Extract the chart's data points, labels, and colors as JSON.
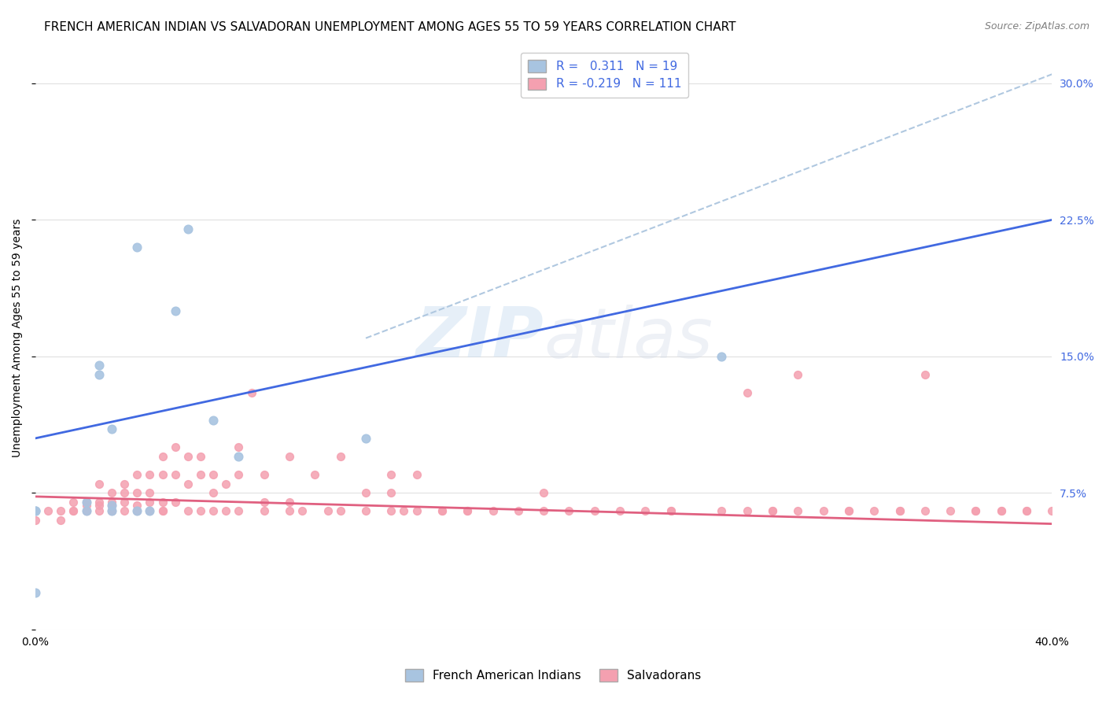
{
  "title": "FRENCH AMERICAN INDIAN VS SALVADORAN UNEMPLOYMENT AMONG AGES 55 TO 59 YEARS CORRELATION CHART",
  "source": "Source: ZipAtlas.com",
  "ylabel": "Unemployment Among Ages 55 to 59 years",
  "xlim": [
    0.0,
    0.4
  ],
  "ylim": [
    0.0,
    0.32
  ],
  "xticks": [
    0.0,
    0.05,
    0.1,
    0.15,
    0.2,
    0.25,
    0.3,
    0.35,
    0.4
  ],
  "yticks": [
    0.0,
    0.075,
    0.15,
    0.225,
    0.3
  ],
  "ytick_labels": [
    "",
    "7.5%",
    "15.0%",
    "22.5%",
    "30.0%"
  ],
  "xtick_labels": [
    "0.0%",
    "",
    "",
    "",
    "",
    "",
    "",
    "",
    "40.0%"
  ],
  "blue_R": 0.311,
  "blue_N": 19,
  "pink_R": -0.219,
  "pink_N": 111,
  "blue_color": "#a8c4e0",
  "pink_color": "#f4a0b0",
  "blue_line_color": "#4169e1",
  "pink_line_color": "#e06080",
  "dashed_line_color": "#b0c8e0",
  "watermark_zip": "ZIP",
  "watermark_atlas": "atlas",
  "blue_scatter_x": [
    0.0,
    0.02,
    0.02,
    0.025,
    0.025,
    0.03,
    0.03,
    0.03,
    0.04,
    0.04,
    0.045,
    0.055,
    0.06,
    0.07,
    0.08,
    0.27,
    0.13,
    0.0,
    0.0
  ],
  "blue_scatter_y": [
    0.065,
    0.065,
    0.07,
    0.14,
    0.145,
    0.065,
    0.068,
    0.11,
    0.065,
    0.21,
    0.065,
    0.175,
    0.22,
    0.115,
    0.095,
    0.15,
    0.105,
    0.02,
    0.065
  ],
  "pink_scatter_x": [
    0.0,
    0.005,
    0.01,
    0.01,
    0.015,
    0.015,
    0.015,
    0.02,
    0.02,
    0.02,
    0.02,
    0.025,
    0.025,
    0.025,
    0.025,
    0.03,
    0.03,
    0.03,
    0.03,
    0.03,
    0.035,
    0.035,
    0.035,
    0.035,
    0.04,
    0.04,
    0.04,
    0.04,
    0.045,
    0.045,
    0.045,
    0.045,
    0.05,
    0.05,
    0.05,
    0.05,
    0.05,
    0.055,
    0.055,
    0.055,
    0.06,
    0.06,
    0.06,
    0.065,
    0.065,
    0.065,
    0.07,
    0.07,
    0.07,
    0.075,
    0.075,
    0.08,
    0.08,
    0.08,
    0.085,
    0.09,
    0.09,
    0.09,
    0.1,
    0.1,
    0.1,
    0.105,
    0.11,
    0.115,
    0.12,
    0.12,
    0.13,
    0.13,
    0.14,
    0.14,
    0.14,
    0.145,
    0.15,
    0.15,
    0.16,
    0.16,
    0.17,
    0.17,
    0.18,
    0.19,
    0.2,
    0.2,
    0.21,
    0.22,
    0.23,
    0.24,
    0.25,
    0.25,
    0.27,
    0.28,
    0.29,
    0.3,
    0.31,
    0.32,
    0.33,
    0.34,
    0.35,
    0.36,
    0.37,
    0.38,
    0.39,
    0.4,
    0.28,
    0.29,
    0.3,
    0.32,
    0.34,
    0.35,
    0.37,
    0.38,
    0.39
  ],
  "pink_scatter_y": [
    0.06,
    0.065,
    0.065,
    0.06,
    0.065,
    0.07,
    0.065,
    0.07,
    0.065,
    0.065,
    0.068,
    0.08,
    0.068,
    0.065,
    0.07,
    0.065,
    0.068,
    0.075,
    0.07,
    0.065,
    0.075,
    0.07,
    0.065,
    0.08,
    0.068,
    0.065,
    0.075,
    0.085,
    0.065,
    0.075,
    0.07,
    0.085,
    0.065,
    0.085,
    0.065,
    0.095,
    0.07,
    0.1,
    0.085,
    0.07,
    0.065,
    0.08,
    0.095,
    0.085,
    0.065,
    0.095,
    0.075,
    0.065,
    0.085,
    0.065,
    0.08,
    0.065,
    0.085,
    0.1,
    0.13,
    0.065,
    0.07,
    0.085,
    0.065,
    0.07,
    0.095,
    0.065,
    0.085,
    0.065,
    0.095,
    0.065,
    0.075,
    0.065,
    0.075,
    0.085,
    0.065,
    0.065,
    0.065,
    0.085,
    0.065,
    0.065,
    0.065,
    0.065,
    0.065,
    0.065,
    0.065,
    0.075,
    0.065,
    0.065,
    0.065,
    0.065,
    0.065,
    0.065,
    0.065,
    0.065,
    0.065,
    0.065,
    0.065,
    0.065,
    0.065,
    0.065,
    0.065,
    0.065,
    0.065,
    0.065,
    0.065,
    0.065,
    0.13,
    0.065,
    0.14,
    0.065,
    0.065,
    0.14,
    0.065,
    0.065,
    0.065
  ],
  "blue_line_x": [
    0.0,
    0.4
  ],
  "blue_line_y_start": 0.105,
  "blue_line_y_end": 0.225,
  "pink_line_x": [
    0.0,
    0.4
  ],
  "pink_line_y_start": 0.073,
  "pink_line_y_end": 0.058,
  "dashed_line_x": [
    0.13,
    0.4
  ],
  "dashed_line_y_start": 0.16,
  "dashed_line_y_end": 0.305,
  "background_color": "#ffffff",
  "grid_color": "#e0e0e0",
  "right_yaxis_color": "#4169e1",
  "title_fontsize": 11,
  "axis_label_fontsize": 10,
  "tick_fontsize": 10
}
